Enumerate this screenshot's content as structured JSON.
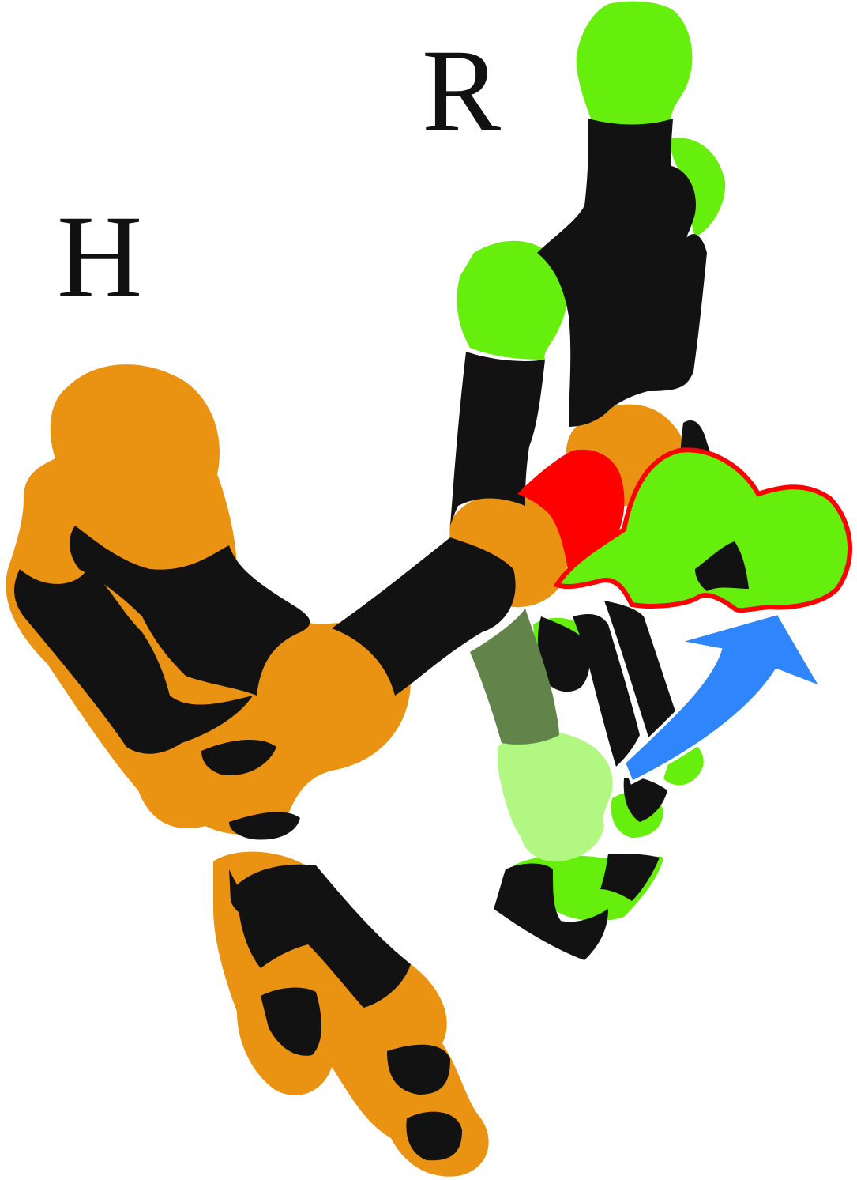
{
  "labels": {
    "h": "H",
    "r": "R"
  },
  "colors": {
    "background": "#ffffff",
    "h_domain": "#ea9211",
    "r_domain": "#66ee0c",
    "r_domain_light": "#b1f781",
    "core": "#121212",
    "linker": "#62834a",
    "highlight_red": "#ff0000",
    "arrow_blue": "#2f86fc"
  },
  "icons": {
    "rotation_arrow": "curved-arrow-icon"
  }
}
